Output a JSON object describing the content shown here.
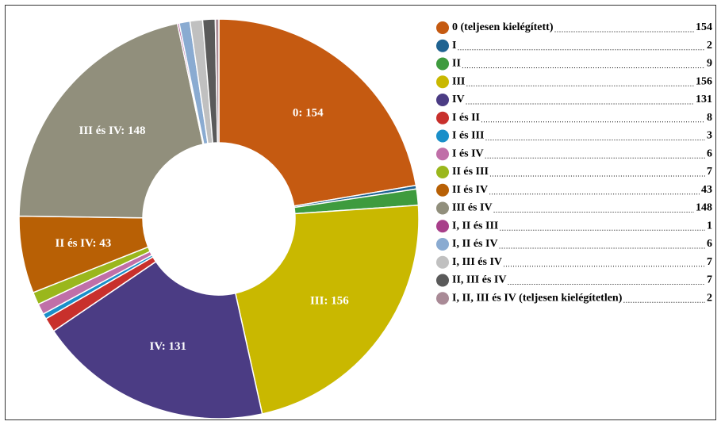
{
  "chart_data": {
    "type": "donut",
    "categories": [
      "0 (teljesen kielégített)",
      "I",
      "II",
      "III",
      "IV",
      "I és II",
      "I és III",
      "I és IV",
      "II és III",
      "II és IV",
      "III és IV",
      "I, II és III",
      "I, II és IV",
      "I, III és IV",
      "II, III és IV",
      "I, II, III és IV (teljesen kielégítetlen)"
    ],
    "values": [
      154,
      2,
      9,
      156,
      131,
      8,
      3,
      6,
      7,
      43,
      148,
      1,
      6,
      7,
      7,
      2
    ],
    "value_labels": [
      "0: 154",
      null,
      null,
      "III: 156",
      "IV: 131",
      null,
      null,
      null,
      null,
      "II és IV: 43",
      "III és IV: 148",
      null,
      null,
      null,
      null,
      null
    ],
    "colors": [
      "#c55a11",
      "#1f6391",
      "#3e9b3e",
      "#c9b800",
      "#4b3c84",
      "#c8302c",
      "#1a8fc9",
      "#c06fa8",
      "#9ab71c",
      "#b86005",
      "#918f7c",
      "#a83f8a",
      "#8aabd1",
      "#c0c0c0",
      "#5a5a5a",
      "#a98a96"
    ],
    "legend": "right"
  }
}
